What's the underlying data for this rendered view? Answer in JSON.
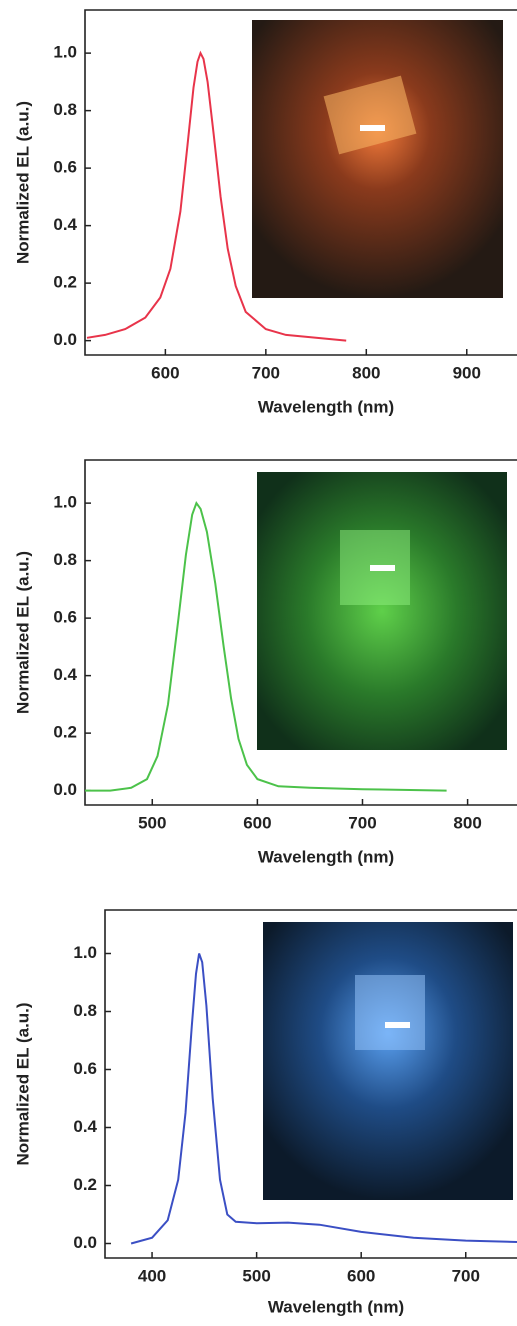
{
  "chart_data": [
    {
      "type": "line",
      "x_label": "Wavelength (nm)",
      "y_label": "Normalized EL (a.u.)",
      "xlim": [
        520,
        950
      ],
      "ylim": [
        -0.05,
        1.15
      ],
      "xticks": [
        600,
        700,
        800,
        900
      ],
      "yticks": [
        {
          "value": 0,
          "label": "0.0"
        },
        0.2,
        0.4,
        0.6,
        0.8,
        {
          "value": 1,
          "label": "1.0"
        }
      ],
      "x": [
        522,
        540,
        560,
        580,
        595,
        605,
        615,
        622,
        628,
        632,
        635,
        638,
        642,
        648,
        655,
        662,
        670,
        680,
        700,
        720,
        750,
        780
      ],
      "series": [
        {
          "color": "#e8344a",
          "values": [
            0.01,
            0.02,
            0.04,
            0.08,
            0.15,
            0.25,
            0.45,
            0.68,
            0.88,
            0.97,
            1.0,
            0.98,
            0.9,
            0.72,
            0.5,
            0.32,
            0.19,
            0.1,
            0.04,
            0.02,
            0.01,
            0.0
          ]
        }
      ]
    },
    {
      "type": "line",
      "x_label": "Wavelength (nm)",
      "y_label": "Normalized EL (a.u.)",
      "xlim": [
        436,
        847
      ],
      "ylim": [
        -0.05,
        1.15
      ],
      "xticks": [
        500,
        600,
        700,
        800
      ],
      "yticks": [
        {
          "value": 0,
          "label": "0.0"
        },
        0.2,
        0.4,
        0.6,
        0.8,
        {
          "value": 1,
          "label": "1.0"
        }
      ],
      "x": [
        436,
        460,
        480,
        495,
        505,
        515,
        525,
        532,
        538,
        542,
        546,
        552,
        560,
        568,
        575,
        582,
        590,
        600,
        620,
        650,
        700,
        780
      ],
      "series": [
        {
          "color": "#4cc24a",
          "values": [
            0.0,
            0.0,
            0.01,
            0.04,
            0.12,
            0.3,
            0.6,
            0.82,
            0.96,
            1.0,
            0.98,
            0.9,
            0.72,
            0.5,
            0.32,
            0.18,
            0.09,
            0.04,
            0.015,
            0.01,
            0.005,
            0.0
          ]
        }
      ]
    },
    {
      "type": "line",
      "x_label": "Wavelength (nm)",
      "y_label": "Normalized EL (a.u.)",
      "xlim": [
        355,
        749
      ],
      "ylim": [
        -0.05,
        1.15
      ],
      "xticks": [
        400,
        500,
        600,
        700
      ],
      "yticks": [
        {
          "value": 0,
          "label": "0.0"
        },
        0.2,
        0.4,
        0.6,
        0.8,
        {
          "value": 1,
          "label": "1.0"
        }
      ],
      "x": [
        380,
        400,
        415,
        425,
        432,
        438,
        442,
        445,
        448,
        452,
        458,
        465,
        472,
        480,
        500,
        530,
        560,
        600,
        650,
        700,
        749
      ],
      "series": [
        {
          "color": "#3b4fc4",
          "values": [
            0.0,
            0.02,
            0.08,
            0.22,
            0.45,
            0.75,
            0.93,
            1.0,
            0.97,
            0.82,
            0.5,
            0.22,
            0.1,
            0.075,
            0.07,
            0.072,
            0.065,
            0.04,
            0.02,
            0.01,
            0.005
          ]
        }
      ]
    }
  ]
}
